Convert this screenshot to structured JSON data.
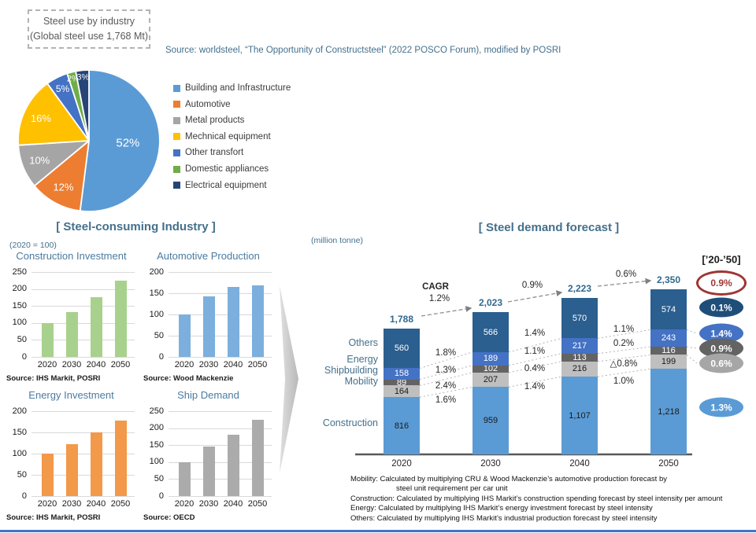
{
  "page": {
    "box_title_line1": "Steel use by industry",
    "box_title_line2": "(Global steel use 1,768 Mt)",
    "source_note": "Source: worldsteel, “The Opportunity of Constructsteel” (2022 POSCO Forum), modified by POSRI",
    "left_section_title": "[ Steel-consuming Industry ]",
    "left_section_note": "(2020 = 100)",
    "right_section_title": "[ Steel demand forecast ]"
  },
  "chart_data": [
    {
      "id": "steel-use-pie",
      "type": "pie",
      "title": "Steel use by industry (Global steel use 1,768 Mt)",
      "total": "1,768 Mt",
      "slices": [
        {
          "label": "Building and Infrastructure",
          "value": 52,
          "pct_label": "52%",
          "color": "#5B9BD5",
          "rf": 0.55,
          "fs": 15
        },
        {
          "label": "Automotive",
          "value": 12,
          "pct_label": "12%",
          "color": "#ED7D31",
          "rf": 0.75,
          "fs": 13
        },
        {
          "label": "Metal products",
          "value": 10,
          "pct_label": "10%",
          "color": "#A5A5A5",
          "rf": 0.75,
          "fs": 13
        },
        {
          "label": "Mechnical equipment",
          "value": 16,
          "pct_label": "16%",
          "color": "#FFC000",
          "rf": 0.75,
          "fs": 13
        },
        {
          "label": "Other transfort",
          "value": 5,
          "pct_label": "5%",
          "color": "#4472C4",
          "rf": 0.82,
          "fs": 12
        },
        {
          "label": "Domestic appliances",
          "value": 2,
          "pct_label": "2%",
          "color": "#70AD47",
          "rf": 0.9,
          "fs": 11
        },
        {
          "label": "Electrical equipment",
          "value": 3,
          "pct_label": "3%",
          "color": "#264478",
          "rf": 0.9,
          "fs": 11
        }
      ]
    },
    {
      "id": "construction-investment",
      "type": "bar",
      "title": "Construction Investment",
      "categories": [
        "2020",
        "2030",
        "2040",
        "2050"
      ],
      "values": [
        100,
        133,
        175,
        225
      ],
      "ylim": [
        0,
        250
      ],
      "ystep": 50,
      "bar_color": "#A9D18E",
      "source": "Source: IHS Markit, POSRI"
    },
    {
      "id": "automotive-production",
      "type": "bar",
      "title": "Automotive Production",
      "categories": [
        "2020",
        "2030",
        "2040",
        "2050"
      ],
      "values": [
        100,
        143,
        165,
        168
      ],
      "ylim": [
        0,
        200
      ],
      "ystep": 50,
      "bar_color": "#7CAFDD",
      "source": "Source: Wood Mackenzie"
    },
    {
      "id": "energy-investment",
      "type": "bar",
      "title": "Energy Investment",
      "categories": [
        "2020",
        "2030",
        "2040",
        "2050"
      ],
      "values": [
        100,
        123,
        150,
        177
      ],
      "ylim": [
        0,
        200
      ],
      "ystep": 50,
      "bar_color": "#F2994A",
      "source": "Source: IHS Markit, POSRI"
    },
    {
      "id": "ship-demand",
      "type": "bar",
      "title": "Ship Demand",
      "categories": [
        "2020",
        "2030",
        "2040",
        "2050"
      ],
      "values": [
        100,
        145,
        180,
        225
      ],
      "ylim": [
        0,
        250
      ],
      "ystep": 50,
      "bar_color": "#ABABAB",
      "source": "Source: OECD"
    },
    {
      "id": "steel-demand-forecast",
      "type": "stacked-bar",
      "title": "[ Steel demand forecast ]",
      "unit_label": "(million tonne)",
      "cagr_word": "CAGR",
      "years": [
        "2020",
        "2030",
        "2040",
        "2050"
      ],
      "totals": [
        "1,788",
        "2,023",
        "2,223",
        "2,350"
      ],
      "series_bottom_up": [
        {
          "name": "Construction",
          "color": "#5B9BD5",
          "text_color": "#1a1a1a",
          "values": [
            816,
            959,
            1107,
            1218
          ],
          "value_labels": [
            "816",
            "959",
            "1,107",
            "1,218"
          ]
        },
        {
          "name": "Mobility",
          "color": "#BFBFBF",
          "text_color": "#1a1a1a",
          "values": [
            164,
            207,
            216,
            199
          ],
          "value_labels": [
            "164",
            "207",
            "216",
            "199"
          ]
        },
        {
          "name": "Shipbuilding",
          "color": "#636363",
          "text_color": "#ffffff",
          "values": [
            89,
            102,
            113,
            116
          ],
          "value_labels": [
            "89",
            "102",
            "113",
            "116"
          ]
        },
        {
          "name": "Energy",
          "color": "#4472C4",
          "text_color": "#ffffff",
          "values": [
            158,
            189,
            217,
            243
          ],
          "value_labels": [
            "158",
            "189",
            "217",
            "243"
          ]
        },
        {
          "name": "Others",
          "color": "#2A5F8F",
          "text_color": "#ffffff",
          "values": [
            560,
            566,
            570,
            574
          ],
          "value_labels": [
            "560",
            "566",
            "570",
            "574"
          ]
        }
      ],
      "category_labels": [
        "Others",
        "Energy",
        "Shipbuilding",
        "Mobility",
        "Construction"
      ],
      "total_growth": [
        "1.2%",
        "0.9%",
        "0.6%"
      ],
      "segment_growth_top_to_bottom": [
        [
          "1.8%",
          "1.3%",
          "2.4%",
          "1.6%"
        ],
        [
          "1.4%",
          "1.1%",
          "0.4%",
          "1.4%"
        ],
        [
          "1.1%",
          "0.2%",
          "△0.8%",
          "1.0%"
        ]
      ],
      "badge_header": "[’20-’50]",
      "badges": [
        {
          "label": "0.9%",
          "style": "outline",
          "color": "#9E3634"
        },
        {
          "label": "0.1%",
          "style": "fill",
          "color": "#1F4E79"
        },
        {
          "label": "1.4%",
          "style": "fill",
          "color": "#4472C4"
        },
        {
          "label": "0.9%",
          "style": "fill",
          "color": "#636363"
        },
        {
          "label": "0.6%",
          "style": "fill",
          "color": "#A6A6A6"
        },
        {
          "label": "1.3%",
          "style": "fill",
          "color": "#5B9BD5"
        }
      ],
      "footnotes": [
        {
          "text": "Mobility: Calculated by multiplying CRU & Wood Mackenzie’s automotive production forecast by",
          "indent": 0
        },
        {
          "text": "steel unit requirement per car unit",
          "indent": 58
        },
        {
          "text": "Construction: Calculated by multiplying IHS Markit’s construction spending forecast by steel intensity per amount",
          "indent": 0
        },
        {
          "text": "Energy: Calculated by multiplying IHS Markit’s energy investment forecast by steel intensity",
          "indent": 0
        },
        {
          "text": "Others: Calculated by multiplying IHS Markit’s industrial production forecast by steel intensity",
          "indent": 0
        }
      ]
    }
  ]
}
